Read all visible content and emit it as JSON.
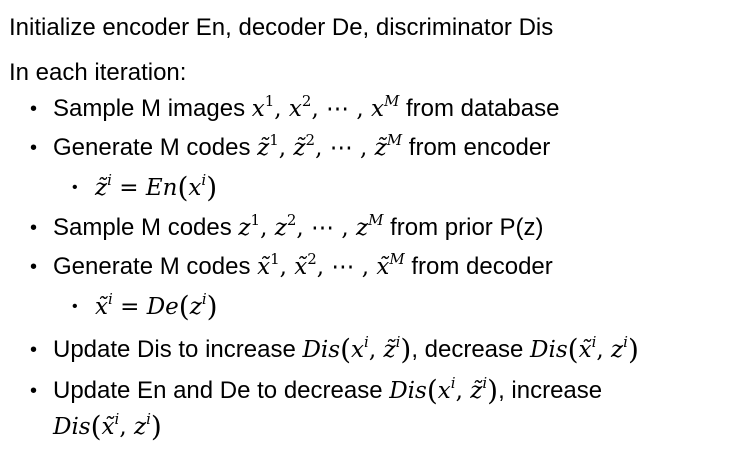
{
  "lines": {
    "init": "Initialize encoder En, decoder De, discriminator Dis",
    "iter": "In each iteration:"
  },
  "bullets": {
    "b1": {
      "pre": "Sample M images ",
      "math_x": "x",
      "sup1": "1",
      "sep1": ", ",
      "math_x2": "x",
      "sup2": "2",
      "dots": ", ⋯ , ",
      "math_xM": "x",
      "supM": "M",
      "post": " from database"
    },
    "b2": {
      "pre": "Generate M codes ",
      "math_z": "z̃",
      "sup1": "1",
      "sep1": ", ",
      "math_z2": "z̃",
      "sup2": "2",
      "dots": ", ⋯ , ",
      "math_zM": "z̃",
      "supM": "M",
      "post": " from encoder"
    },
    "b2a": {
      "lhs": "z̃",
      "sup_i": "i",
      "eq": " = ",
      "fn": "En",
      "arg": "x",
      "arg_sup": "i"
    },
    "b3": {
      "pre": "Sample M codes ",
      "math_z": "z",
      "sup1": "1",
      "sep1": ", ",
      "math_z2": "z",
      "sup2": "2",
      "dots": ", ⋯ , ",
      "math_zM": "z",
      "supM": "M",
      "post": " from prior P(z)"
    },
    "b4": {
      "pre": "Generate M codes ",
      "math_x": "x̃",
      "sup1": "1",
      "sep1": ", ",
      "math_x2": "x̃",
      "sup2": "2",
      "dots": ", ⋯ , ",
      "math_xM": "x̃",
      "supM": "M",
      "post": " from decoder"
    },
    "b4a": {
      "lhs": "x̃",
      "sup_i": "i",
      "eq": " = ",
      "fn": "De",
      "arg": "z",
      "arg_sup": "i"
    },
    "b5": {
      "pre": "Update Dis to increase ",
      "fn1": "Dis",
      "a1": "x",
      "a1_sup": "i",
      "comma1": ", ",
      "b1": "z̃",
      "b1_sup": "i",
      "mid": ", decrease ",
      "fn2": "Dis",
      "a2": "x̃",
      "a2_sup": "i",
      "comma2": ", ",
      "b2": "z",
      "b2_sup": "i"
    },
    "b6": {
      "pre": "Update En and De to decrease ",
      "fn1": "Dis",
      "a1": "x",
      "a1_sup": "i",
      "comma1": ", ",
      "b1": "z̃",
      "b1_sup": "i",
      "mid": ", increase",
      "fn2": "Dis",
      "a2": "x̃",
      "a2_sup": "i",
      "comma2": ", ",
      "b2": "z",
      "b2_sup": "i"
    }
  },
  "symbols": {
    "bullet": "•",
    "lparen": "(",
    "rparen": ")"
  }
}
